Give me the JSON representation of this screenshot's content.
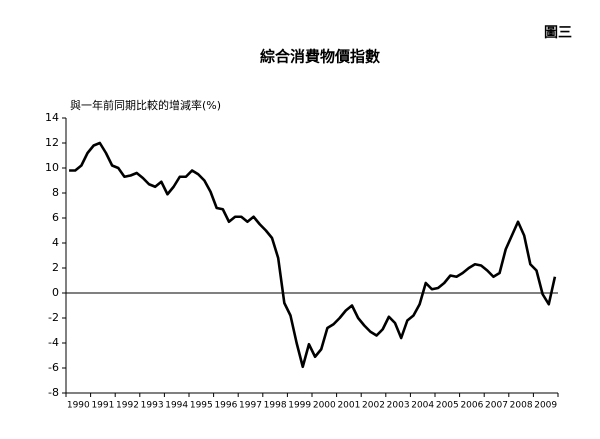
{
  "chart_data": {
    "type": "line",
    "figure_label": "圖三",
    "title": "綜合消費物價指數",
    "y_label": "與一年前同期比較的增減率(%)",
    "x": [
      1990.125,
      1990.375,
      1990.625,
      1990.875,
      1991.125,
      1991.375,
      1991.625,
      1991.875,
      1992.125,
      1992.375,
      1992.625,
      1992.875,
      1993.125,
      1993.375,
      1993.625,
      1993.875,
      1994.125,
      1994.375,
      1994.625,
      1994.875,
      1995.125,
      1995.375,
      1995.625,
      1995.875,
      1996.125,
      1996.375,
      1996.625,
      1996.875,
      1997.125,
      1997.375,
      1997.625,
      1997.875,
      1998.125,
      1998.375,
      1998.625,
      1998.875,
      1999.125,
      1999.375,
      1999.625,
      1999.875,
      2000.125,
      2000.375,
      2000.625,
      2000.875,
      2001.125,
      2001.375,
      2001.625,
      2001.875,
      2002.125,
      2002.375,
      2002.625,
      2002.875,
      2003.125,
      2003.375,
      2003.625,
      2003.875,
      2004.125,
      2004.375,
      2004.625,
      2004.875,
      2005.125,
      2005.375,
      2005.625,
      2005.875,
      2006.125,
      2006.375,
      2006.625,
      2006.875,
      2007.125,
      2007.375,
      2007.625,
      2007.875,
      2008.125,
      2008.375,
      2008.625,
      2008.875,
      2009.125,
      2009.375,
      2009.625,
      2009.875
    ],
    "series": [
      {
        "color": "#000000",
        "values": [
          9.8,
          9.8,
          10.2,
          11.2,
          11.8,
          12.0,
          11.2,
          10.2,
          10.0,
          9.3,
          9.4,
          9.6,
          9.2,
          8.7,
          8.5,
          8.9,
          7.9,
          8.5,
          9.3,
          9.3,
          9.8,
          9.5,
          9.0,
          8.1,
          6.8,
          6.7,
          5.7,
          6.1,
          6.1,
          5.7,
          6.1,
          5.5,
          5.0,
          4.4,
          2.8,
          -0.8,
          -1.8,
          -4.0,
          -5.9,
          -4.1,
          -5.1,
          -4.5,
          -2.8,
          -2.5,
          -2.0,
          -1.4,
          -1.0,
          -2.0,
          -2.6,
          -3.1,
          -3.4,
          -2.9,
          -1.9,
          -2.4,
          -3.6,
          -2.2,
          -1.8,
          -0.9,
          0.8,
          0.3,
          0.4,
          0.8,
          1.4,
          1.3,
          1.6,
          2.0,
          2.3,
          2.2,
          1.8,
          1.3,
          1.6,
          3.5,
          4.6,
          5.7,
          4.6,
          2.3,
          1.8,
          -0.1,
          -0.9,
          1.3
        ]
      }
    ],
    "xlim": [
      1990,
      2010
    ],
    "xticks": [
      1990,
      1991,
      1992,
      1993,
      1994,
      1995,
      1996,
      1997,
      1998,
      1999,
      2000,
      2001,
      2002,
      2003,
      2004,
      2005,
      2006,
      2007,
      2008,
      2009
    ],
    "ylim": [
      -8,
      14
    ],
    "yticks": [
      -8,
      -6,
      -4,
      -2,
      0,
      2,
      4,
      6,
      8,
      10,
      12,
      14
    ],
    "zero_line": true
  }
}
